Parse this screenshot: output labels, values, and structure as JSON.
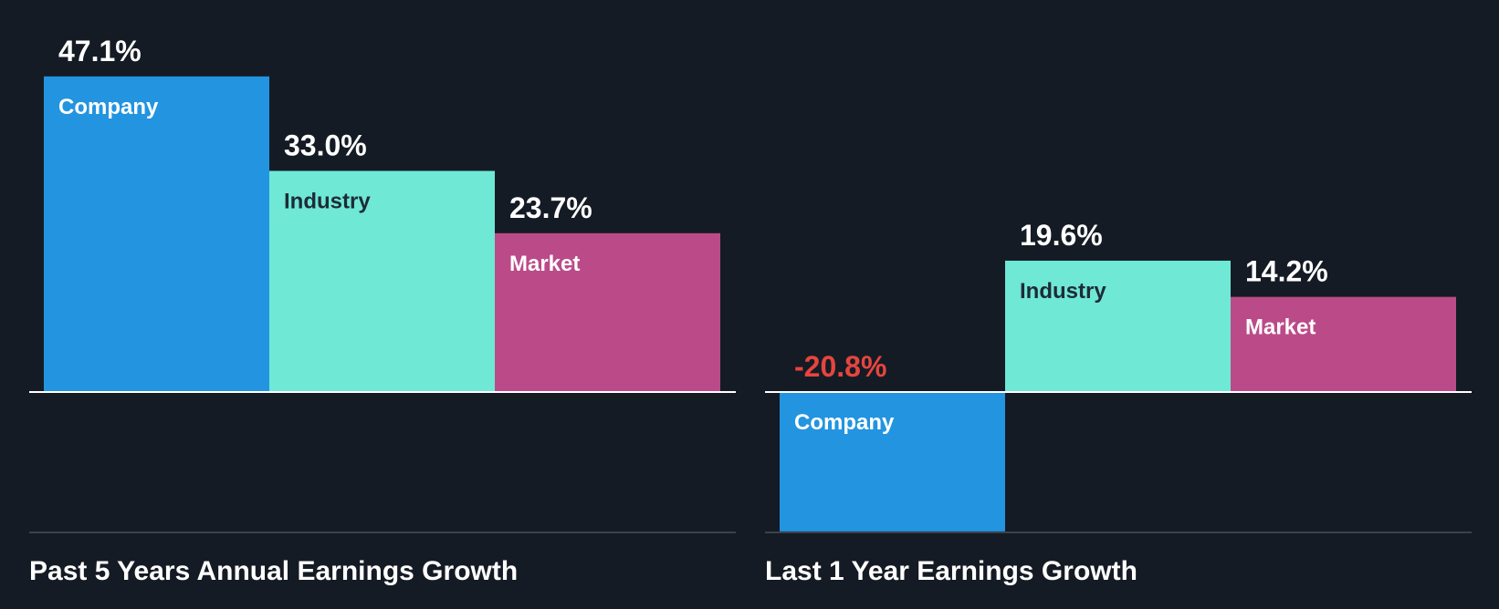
{
  "colors": {
    "background": "#151b24",
    "company": "#2394e0",
    "industry": "#6fe8d6",
    "market": "#bb4b88",
    "positive_value": "#ffffff",
    "negative_value": "#e5453f",
    "label_on_dark": "#ffffff",
    "label_on_light": "#1e2b36",
    "baseline": "#ffffff",
    "divider": "#3b424c"
  },
  "chart_data": [
    {
      "type": "bar",
      "title": "Past 5 Years Annual Earnings Growth",
      "categories": [
        "Company",
        "Industry",
        "Market"
      ],
      "values": [
        47.1,
        33.0,
        23.7
      ],
      "value_labels": [
        "47.1%",
        "33.0%",
        "23.7%"
      ],
      "unit": "%",
      "ylim": [
        -20.8,
        47.1
      ]
    },
    {
      "type": "bar",
      "title": "Last 1 Year Earnings Growth",
      "categories": [
        "Company",
        "Industry",
        "Market"
      ],
      "values": [
        -20.8,
        19.6,
        14.2
      ],
      "value_labels": [
        "-20.8%",
        "19.6%",
        "14.2%"
      ],
      "unit": "%",
      "ylim": [
        -20.8,
        47.1
      ]
    }
  ]
}
